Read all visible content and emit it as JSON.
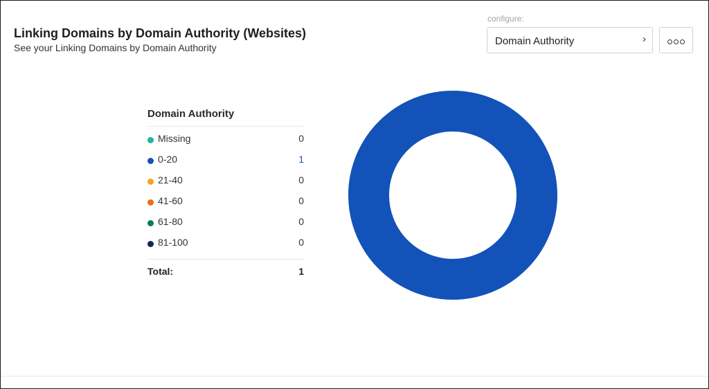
{
  "header": {
    "title": "Linking Domains by Domain Authority (Websites)",
    "subtitle": "See your Linking Domains by Domain Authority"
  },
  "configure": {
    "label": "configure:",
    "selected": "Domain Authority"
  },
  "icons": {
    "select_chevron": "chevron-right-icon",
    "more": "more-options-icon"
  },
  "legend": {
    "title": "Domain Authority",
    "total_label": "Total:",
    "total_value": "1"
  },
  "chart_data": {
    "type": "pie",
    "donut": true,
    "title": "Domain Authority",
    "categories": [
      "Missing",
      "0-20",
      "21-40",
      "41-60",
      "61-80",
      "81-100"
    ],
    "values": [
      0,
      1,
      0,
      0,
      0,
      0
    ],
    "colors": [
      "#1cb5a3",
      "#1352b8",
      "#f4a51c",
      "#f06a19",
      "#0c7a5f",
      "#102a5a"
    ],
    "total": 1
  }
}
